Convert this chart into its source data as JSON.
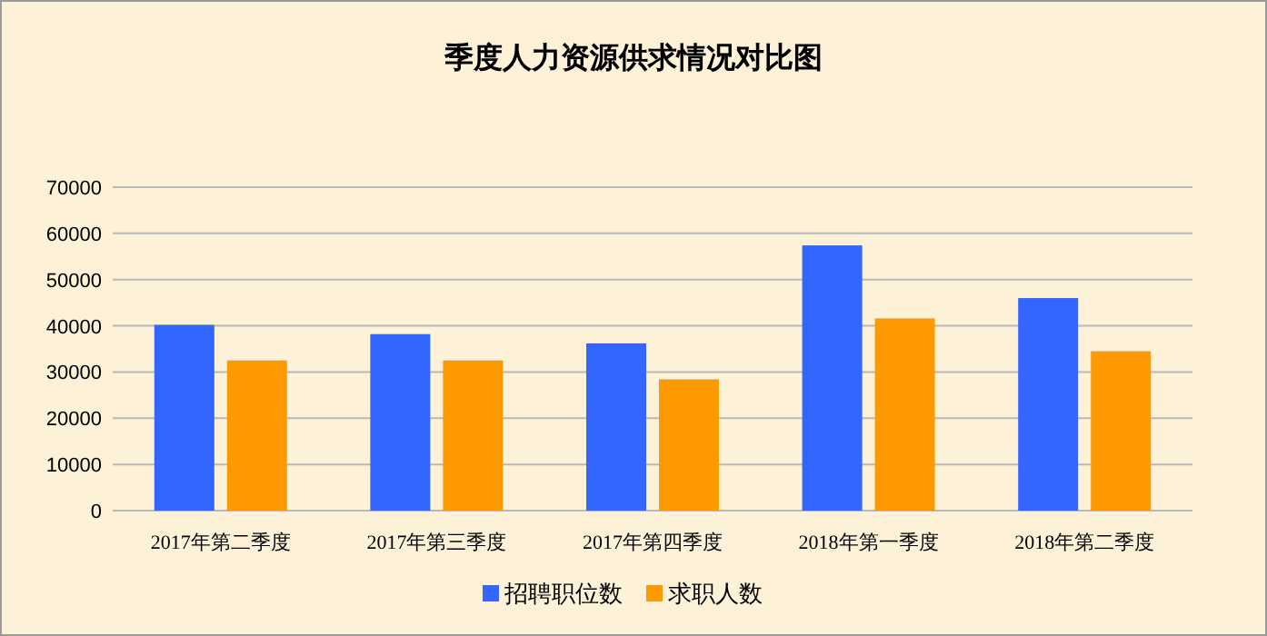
{
  "chart_data": {
    "type": "bar",
    "title": "季度人力资源供求情况对比图",
    "categories": [
      "2017年第二季度",
      "2017年第三季度",
      "2017年第四季度",
      "2018年第一季度",
      "2018年第二季度"
    ],
    "series": [
      {
        "name": "招聘职位数",
        "color": "#3366ff",
        "values": [
          40200,
          38200,
          36200,
          57400,
          46000
        ]
      },
      {
        "name": "求职人数",
        "color": "#ff9900",
        "values": [
          32500,
          32500,
          28400,
          41600,
          34500
        ]
      }
    ],
    "ylim": [
      0,
      70000
    ],
    "yticks": [
      0,
      10000,
      20000,
      30000,
      40000,
      50000,
      60000,
      70000
    ],
    "grid": "y",
    "legend": "bottom"
  }
}
